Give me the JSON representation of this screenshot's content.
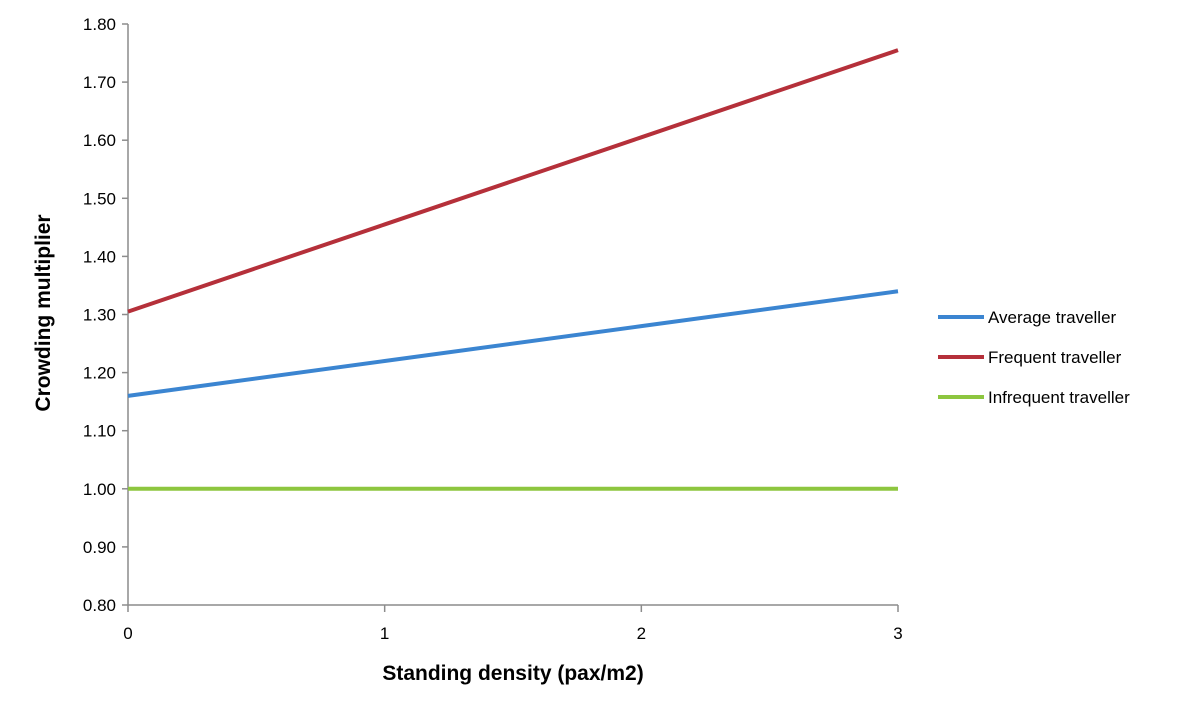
{
  "chart_data": {
    "type": "line",
    "title": "",
    "xlabel": "Standing density (pax/m2)",
    "ylabel": "Crowding multiplier",
    "x": [
      0,
      1,
      2,
      3
    ],
    "x_tick_labels": [
      "0",
      "1",
      "2",
      "3"
    ],
    "ylim": [
      0.8,
      1.8
    ],
    "y_tick_labels": [
      "0.80",
      "0.90",
      "1.00",
      "1.10",
      "1.20",
      "1.30",
      "1.40",
      "1.50",
      "1.60",
      "1.70",
      "1.80"
    ],
    "grid": false,
    "legend_position": "right",
    "series": [
      {
        "name": "Average traveller",
        "color": "#3b85d1",
        "values": [
          1.16,
          1.22,
          1.28,
          1.34
        ]
      },
      {
        "name": "Frequent traveller",
        "color": "#b5303a",
        "values": [
          1.305,
          1.455,
          1.605,
          1.755
        ]
      },
      {
        "name": "Infrequent traveller",
        "color": "#8dc63f",
        "values": [
          1.0,
          1.0,
          1.0,
          1.0
        ]
      }
    ]
  }
}
